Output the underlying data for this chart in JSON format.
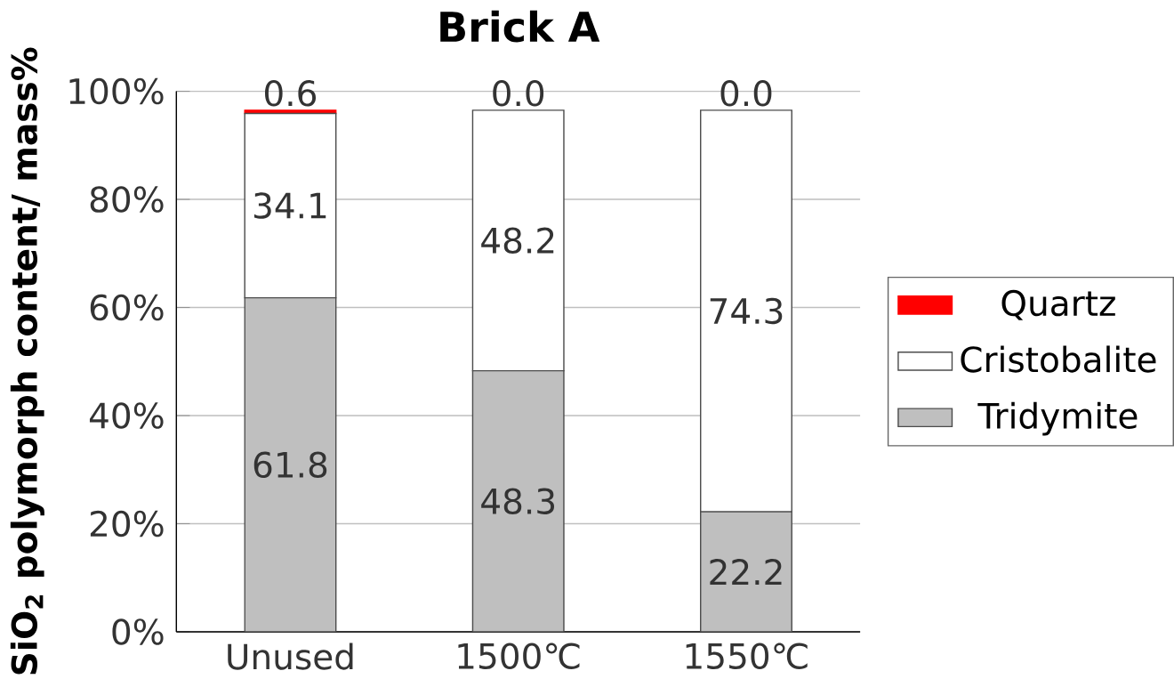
{
  "chart_data": {
    "type": "bar",
    "title": "Brick A",
    "ylabel": "SiO$_{2}$ polymorph content/ mass%",
    "categories": [
      "Unused",
      "1500℃",
      "1550℃"
    ],
    "stacked": true,
    "series": [
      {
        "name": "Tridymite",
        "color": "#bfbfbf",
        "values": [
          61.8,
          48.3,
          22.2
        ],
        "value_labels": [
          "61.8",
          "48.3",
          "22.2"
        ]
      },
      {
        "name": "Cristobalite",
        "color": "#ffffff",
        "values": [
          34.1,
          48.2,
          74.3
        ],
        "value_labels": [
          "34.1",
          "48.2",
          "74.3"
        ]
      },
      {
        "name": "Quartz",
        "color": "#ff0000",
        "values": [
          0.6,
          0.0,
          0.0
        ],
        "value_labels": [
          "0.6",
          "0.0",
          "0.0"
        ]
      }
    ],
    "ylim": [
      0,
      100
    ],
    "yticks": [
      {
        "value": 0,
        "label": "0%"
      },
      {
        "value": 20,
        "label": "20%"
      },
      {
        "value": 40,
        "label": "40%"
      },
      {
        "value": 60,
        "label": "60%"
      },
      {
        "value": 80,
        "label": "80%"
      },
      {
        "value": 100,
        "label": "100%"
      }
    ],
    "grid": "y",
    "legend": "right"
  }
}
